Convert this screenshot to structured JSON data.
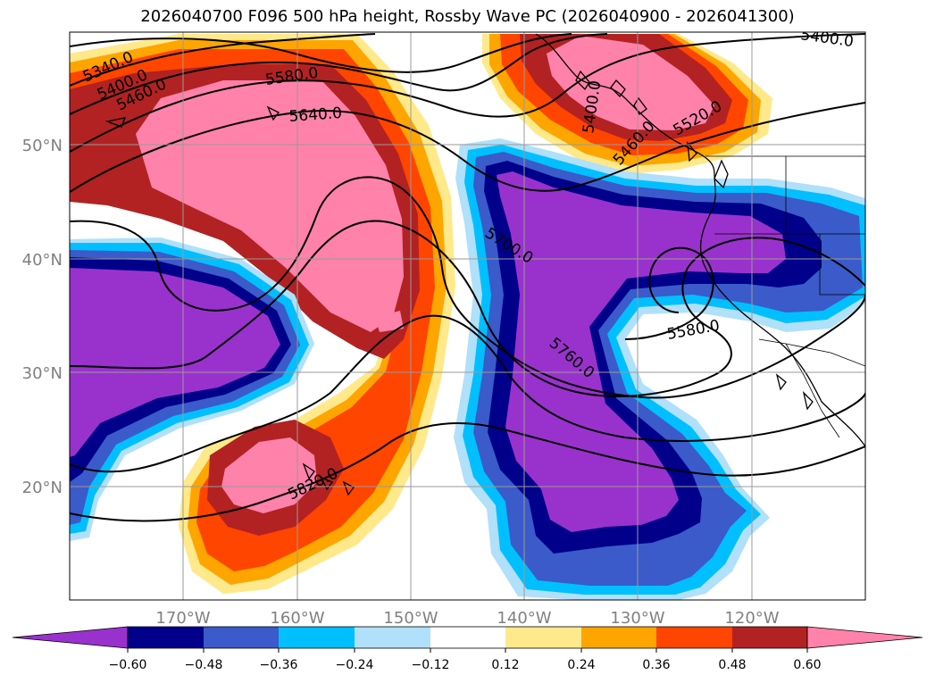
{
  "title": "2026040700 F096 500 hPa height, Rossby Wave PC (2026040900 - 2026041300)",
  "lat_labels": [
    "50°N",
    "40°N",
    "30°N",
    "20°N"
  ],
  "lon_labels": [
    "170°W",
    "160°W",
    "150°W",
    "140°W",
    "130°W",
    "120°W"
  ],
  "contour_labels": [
    "5340.0",
    "5400.0",
    "5460.0",
    "5580.0",
    "5640.0",
    "5700.0",
    "5760.0",
    "5820.0",
    "5580.0",
    "5400.0",
    "5460.0",
    "5520.0",
    "5400.0"
  ],
  "colorbar": {
    "ticks": [
      "−0.60",
      "−0.48",
      "−0.36",
      "−0.24",
      "−0.12",
      "0.12",
      "0.24",
      "0.36",
      "0.48",
      "0.60"
    ],
    "colors": [
      "#9932cc",
      "#00008b",
      "#3a5bc9",
      "#00bfff",
      "#b0e0fa",
      "#ffffff",
      "#ffe98a",
      "#ffa500",
      "#ff4500",
      "#b22222",
      "#ff82ab"
    ]
  },
  "map_colors": {
    "pos_outer": "#ffe98a",
    "pos_2": "#ffa500",
    "pos_3": "#ff4500",
    "pos_4": "#b22222",
    "pos_core": "#ff82ab",
    "neg_outer": "#b0e0fa",
    "neg_2": "#00bfff",
    "neg_3": "#3a5bc9",
    "neg_4": "#00008b",
    "neg_core": "#9932cc"
  }
}
